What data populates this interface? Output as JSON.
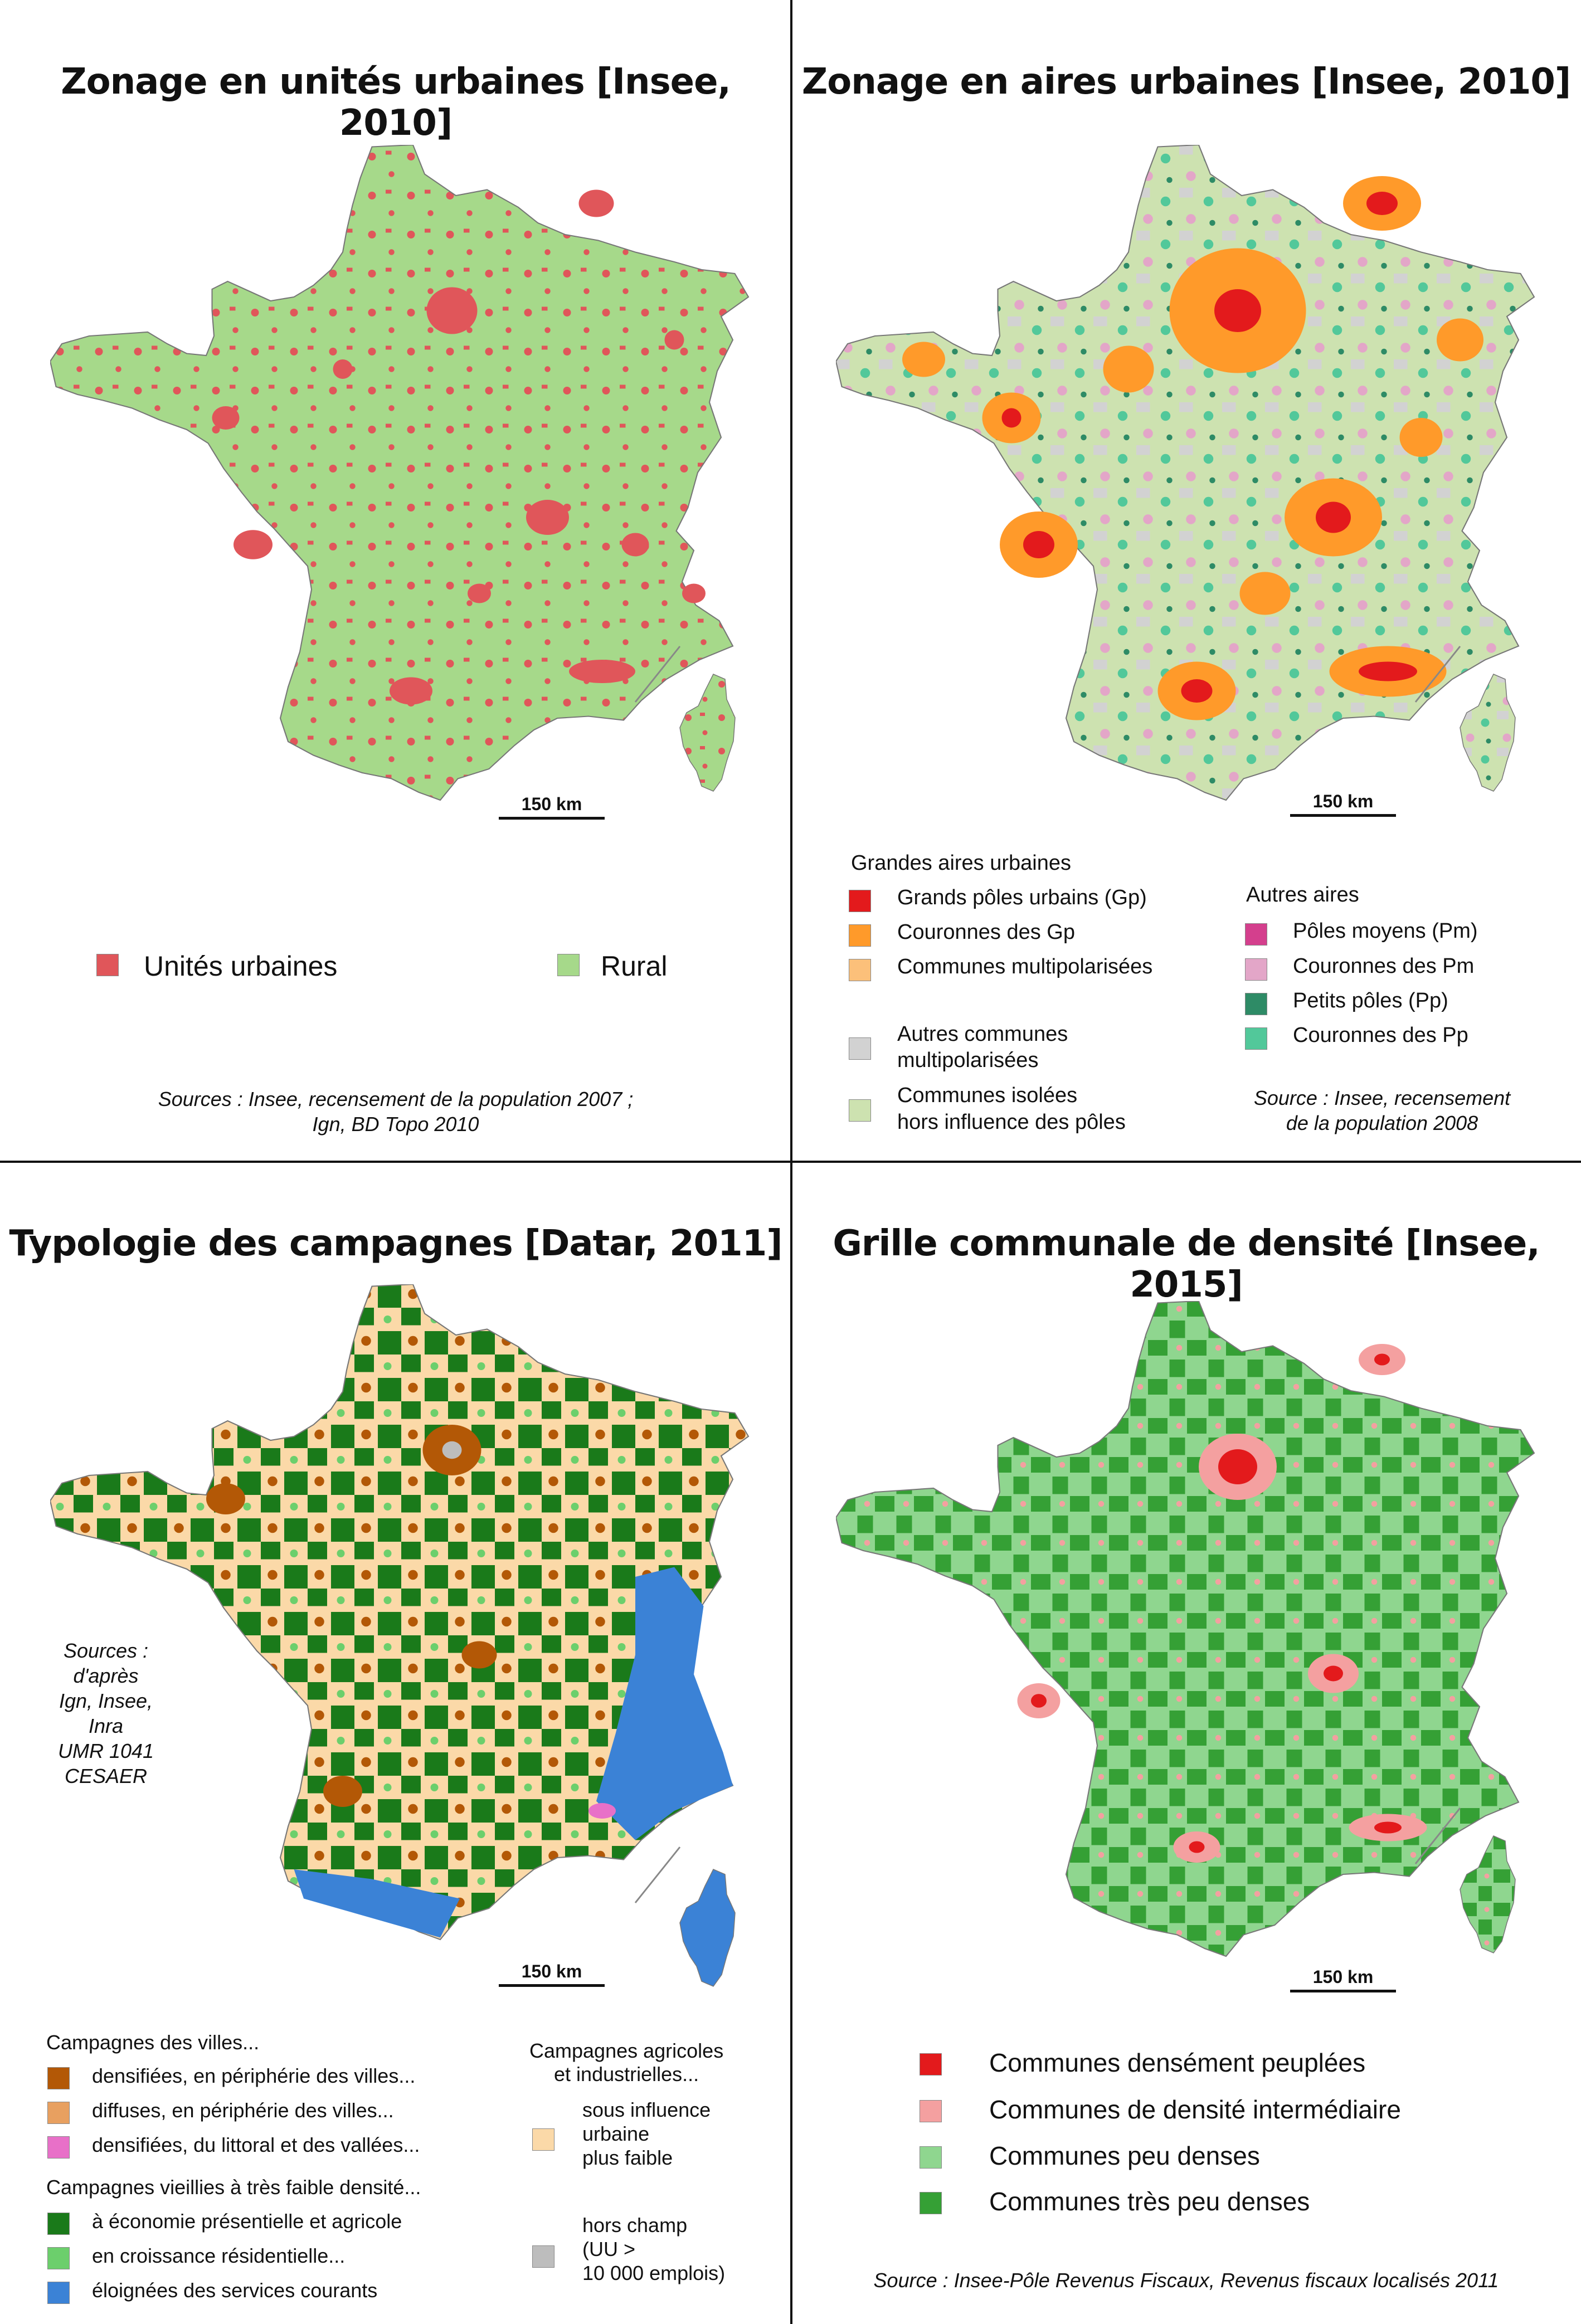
{
  "panels": [
    {
      "title": "Zonage en unités urbaines [Insee, 2010]",
      "scale": "150 km",
      "legend": [
        {
          "label": "Unités urbaines",
          "color": "#e0565a"
        },
        {
          "label": "Rural",
          "color": "#a6d98a"
        }
      ],
      "source": "Sources : Insee, recensement de la population 2007 ;",
      "source2": "Ign, BD Topo 2010"
    },
    {
      "title": "Zonage en aires urbaines [Insee, 2010]",
      "scale": "150 km",
      "group1": "Grandes aires urbaines",
      "group2": "Autres aires",
      "legend_left": [
        {
          "label": "Grands pôles urbains (Gp)",
          "color": "#e31a1c"
        },
        {
          "label": "Couronnes des Gp",
          "color": "#ff9a2a"
        },
        {
          "label": "Communes multipolarisées",
          "color": "#fcc07a"
        },
        {
          "label": "Autres communes",
          "label2": "multipolarisées",
          "color": "#d2d2d2"
        },
        {
          "label": "Communes isolées",
          "label2": "hors influence des pôles",
          "color": "#cde2b0"
        }
      ],
      "legend_right": [
        {
          "label": "Pôles moyens (Pm)",
          "color": "#d43f8d"
        },
        {
          "label": "Couronnes des Pm",
          "color": "#e3a6c8"
        },
        {
          "label": "Petits pôles (Pp)",
          "color": "#2e8b66"
        },
        {
          "label": "Couronnes des Pp",
          "color": "#52c89a"
        }
      ],
      "source": "Source : Insee, recensement",
      "source2": "de la population 2008"
    },
    {
      "title": "Typologie des campagnes [Datar, 2011]",
      "scale": "150 km",
      "group1": "Campagnes des villes...",
      "group2": "Campagnes vieillies à très faible densité...",
      "group3": "Campagnes agricoles",
      "group3b": "et industrielles...",
      "legend_a": [
        {
          "label": "densifiées, en périphérie des villes...",
          "color": "#b35806"
        },
        {
          "label": "diffuses, en périphérie des villes...",
          "color": "#e8a060"
        },
        {
          "label": "densifiées, du littoral et des vallées...",
          "color": "#e870c8"
        }
      ],
      "legend_b": [
        {
          "label": "à économie présentielle et agricole",
          "color": "#1a7a1a"
        },
        {
          "label": "en croissance résidentielle...",
          "color": "#6ccf6c"
        },
        {
          "label": "éloignées des services courants",
          "color": "#3b82d6"
        }
      ],
      "legend_c": [
        {
          "lines": [
            "sous influence",
            "urbaine",
            "plus faible"
          ],
          "color": "#fbd9a8"
        },
        {
          "lines": [
            "hors champ",
            "(UU >",
            "10 000 emplois)"
          ],
          "color": "#bdbdbd"
        }
      ],
      "source_lines": [
        "Sources :",
        "d'après",
        "Ign, Insee,",
        "Inra",
        "UMR 1041",
        "CESAER"
      ]
    },
    {
      "title": "Grille communale de densité [Insee, 2015]",
      "scale": "150 km",
      "legend": [
        {
          "label": "Communes densément peuplées",
          "color": "#e31a1c"
        },
        {
          "label": "Communes de densité intermédiaire",
          "color": "#f4a0a0"
        },
        {
          "label": "Communes peu denses",
          "color": "#8fd68f"
        },
        {
          "label": "Communes très peu denses",
          "color": "#35a035"
        }
      ],
      "source": "Source : Insee-Pôle Revenus Fiscaux, Revenus fiscaux localisés 2011"
    }
  ]
}
